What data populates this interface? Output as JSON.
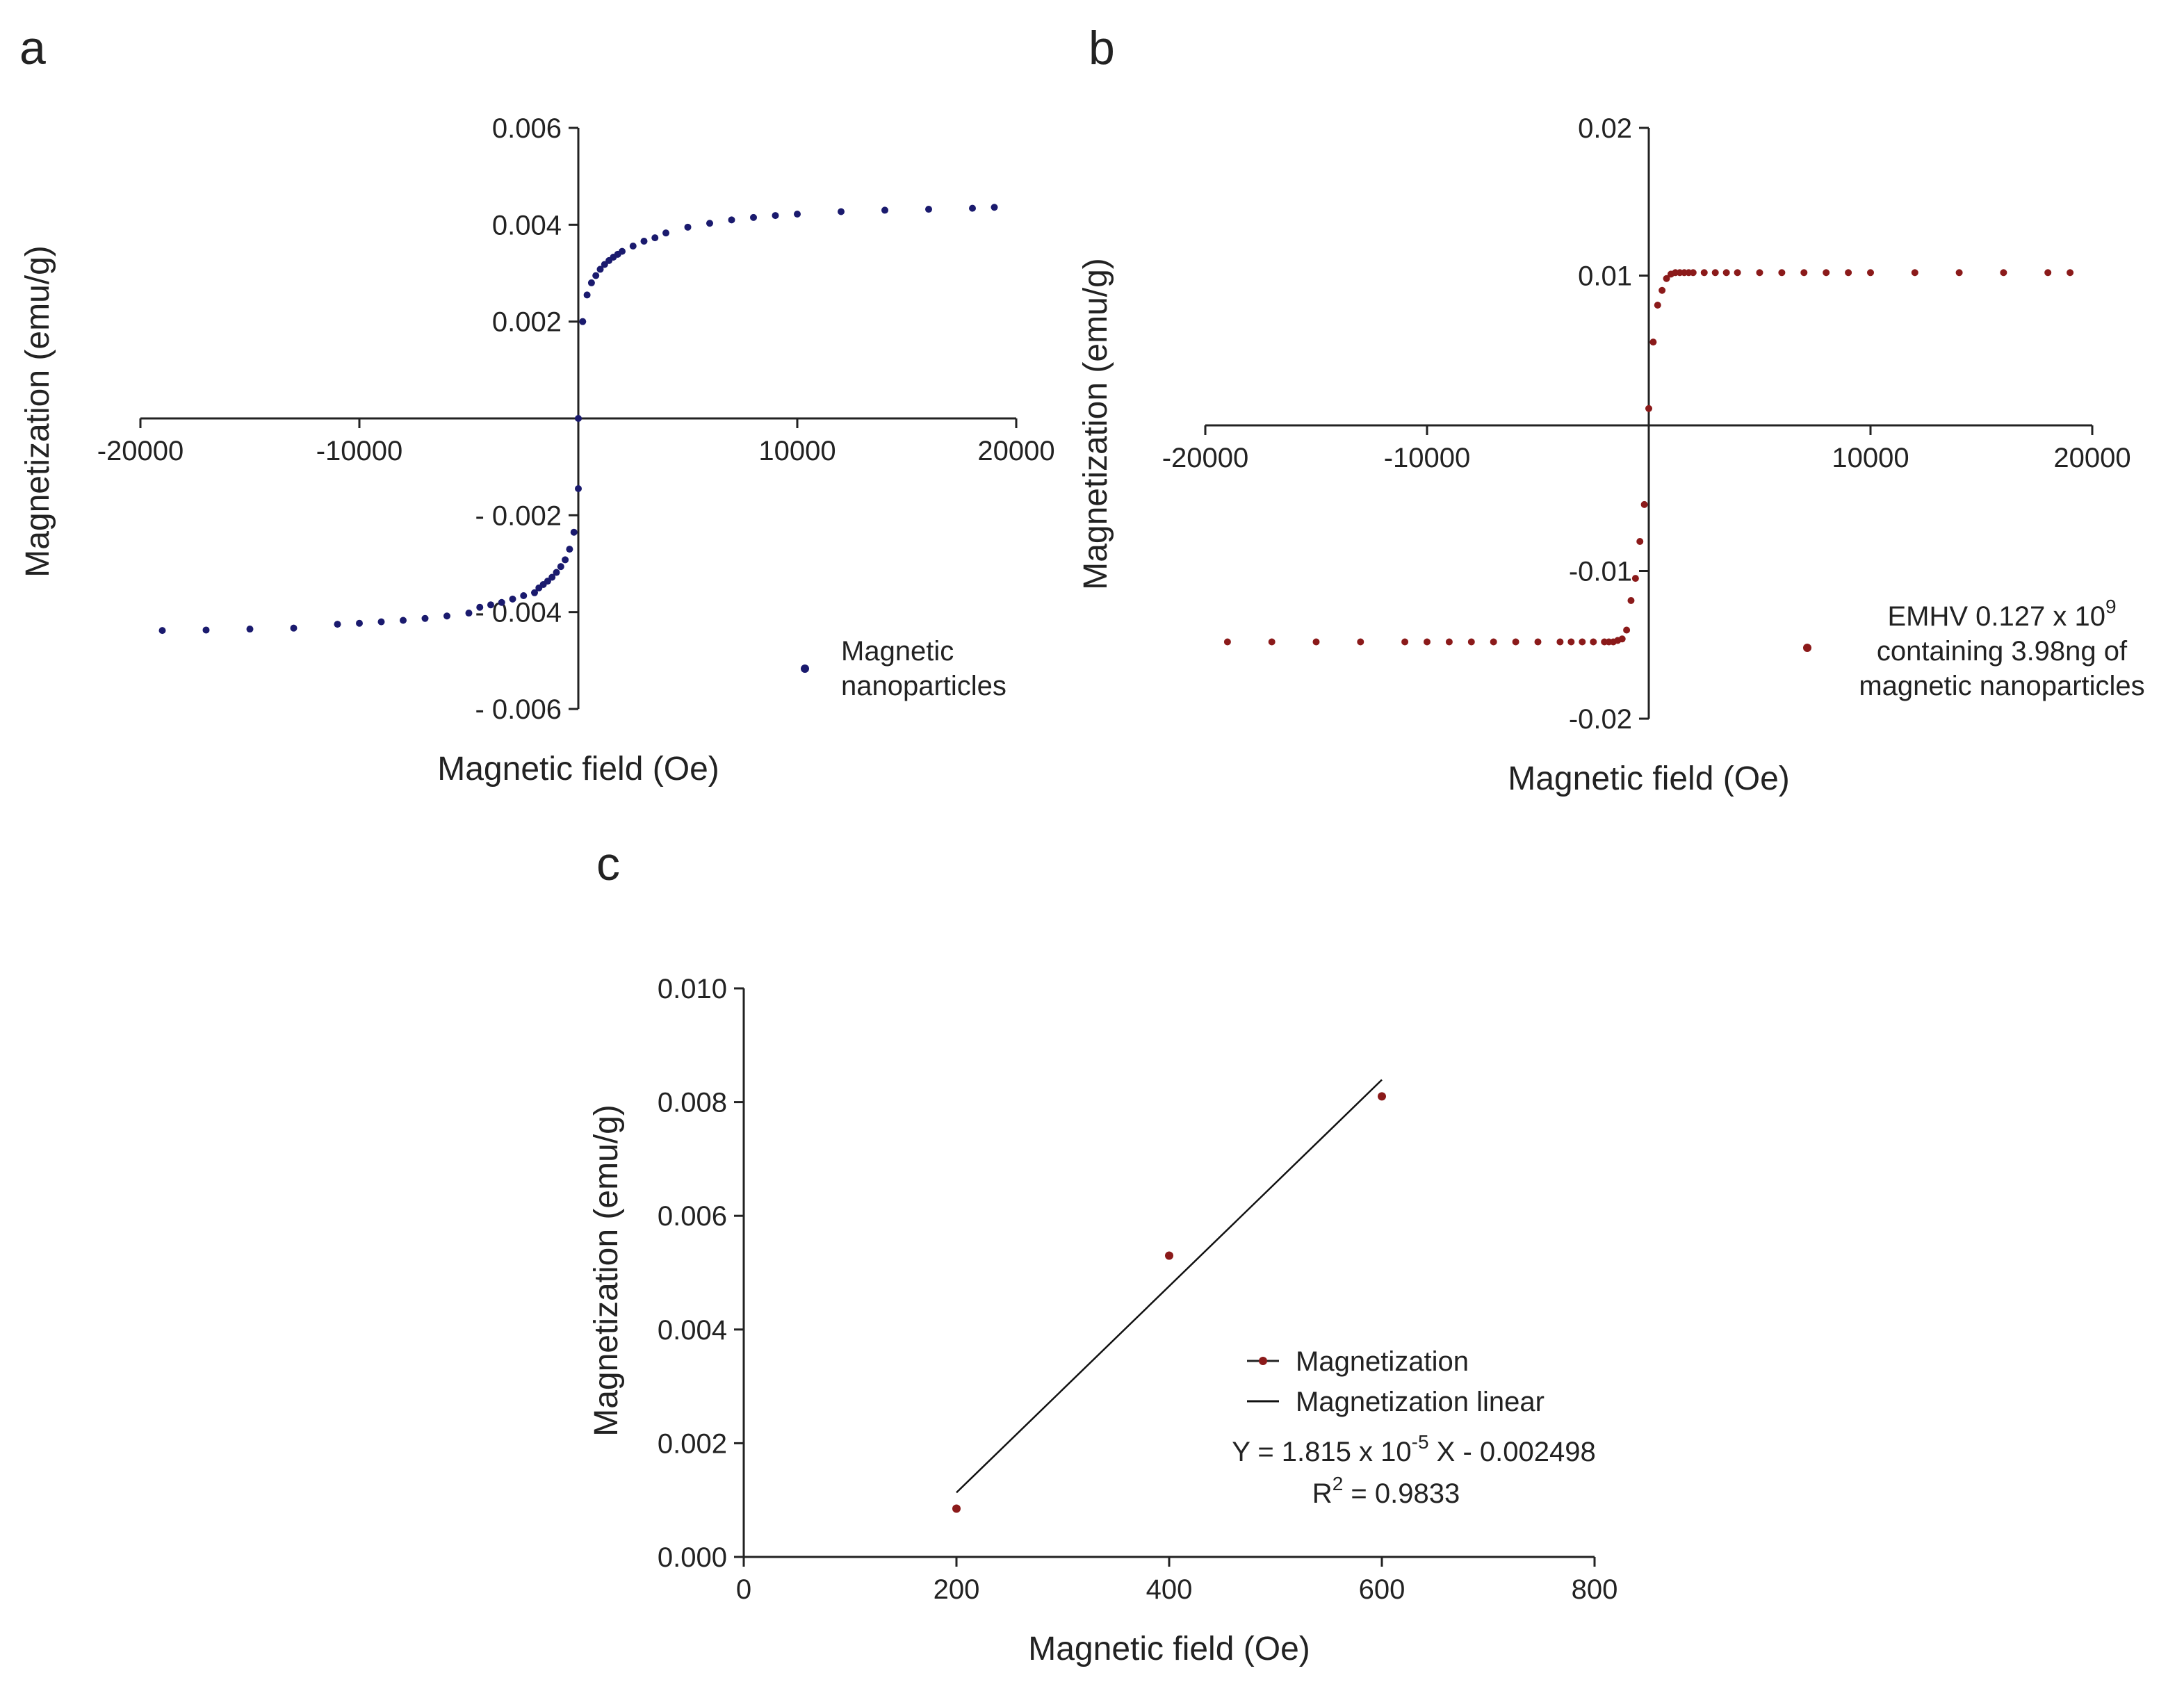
{
  "chart_data": [
    {
      "panel": "a",
      "type": "scatter",
      "xlabel": "Magnetic field (Oe)",
      "ylabel": "Magnetization (emu/g)",
      "xlim": [
        -20000,
        20000
      ],
      "ylim": [
        -0.006,
        0.006
      ],
      "xticks": [
        -20000,
        -10000,
        10000,
        20000
      ],
      "xtick_labels": [
        "-20000",
        "-10000",
        "10000",
        "20000"
      ],
      "yticks": [
        0.006,
        0.004,
        0.002,
        -0.002,
        -0.004,
        -0.006
      ],
      "ytick_labels": [
        "0.006",
        "0.004",
        "0.002",
        "- 0.002",
        "- 0.004",
        "- 0.006"
      ],
      "grid": false,
      "legend_position": "bottom-right",
      "colors": {
        "marker": "#1a1a6e"
      },
      "series": [
        {
          "name": "Magnetic\nnanoparticles",
          "x": [
            -19000,
            -17000,
            -15000,
            -13000,
            -11000,
            -10000,
            -9000,
            -8000,
            -7000,
            -6000,
            -5000,
            -4500,
            -4000,
            -3500,
            -3000,
            -2500,
            -2000,
            -1800,
            -1600,
            -1400,
            -1200,
            -1000,
            -800,
            -600,
            -400,
            -200,
            0,
            0,
            200,
            400,
            600,
            800,
            1000,
            1200,
            1400,
            1600,
            1800,
            2000,
            2500,
            3000,
            3500,
            4000,
            5000,
            6000,
            7000,
            8000,
            9000,
            10000,
            12000,
            14000,
            16000,
            18000,
            19000
          ],
          "y": [
            -0.00438,
            -0.00437,
            -0.00435,
            -0.00433,
            -0.00425,
            -0.00423,
            -0.0042,
            -0.00417,
            -0.00413,
            -0.00408,
            -0.00402,
            -0.0039,
            -0.00385,
            -0.0038,
            -0.00373,
            -0.00366,
            -0.0036,
            -0.0035,
            -0.00343,
            -0.00336,
            -0.00328,
            -0.00318,
            -0.00306,
            -0.00292,
            -0.0027,
            -0.00235,
            -0.00145,
            0.0,
            0.002,
            0.00255,
            0.0028,
            0.00295,
            0.00308,
            0.00318,
            0.00326,
            0.00333,
            0.00339,
            0.00345,
            0.00356,
            0.00366,
            0.00373,
            0.00383,
            0.00395,
            0.00403,
            0.0041,
            0.00415,
            0.00419,
            0.00422,
            0.00427,
            0.0043,
            0.00432,
            0.00434,
            0.00436
          ]
        }
      ]
    },
    {
      "panel": "b",
      "type": "scatter",
      "xlabel": "Magnetic field (Oe)",
      "ylabel": "Magnetization (emu/g)",
      "xlim": [
        -20000,
        20000
      ],
      "ylim": [
        -0.02,
        0.02
      ],
      "xticks": [
        -20000,
        -10000,
        10000,
        20000
      ],
      "xtick_labels": [
        "-20000",
        "-10000",
        "10000",
        "20000"
      ],
      "yticks": [
        0.02,
        0.01,
        -0.01,
        -0.02
      ],
      "ytick_labels": [
        "0.02",
        "0.01",
        "-0.01",
        "-0.02"
      ],
      "grid": false,
      "legend_position": "bottom-right",
      "colors": {
        "marker": "#8b1a1a"
      },
      "legend_lines": [
        "EMHV 0.127 x 10",
        "containing 3.98ng of",
        "magnetic nanoparticles"
      ],
      "legend_superscript": "9",
      "series": [
        {
          "name": "EMHV 0.127 x 10^9 containing 3.98ng of magnetic nanoparticles",
          "x": [
            -19000,
            -17000,
            -15000,
            -13000,
            -11000,
            -10000,
            -9000,
            -8000,
            -7000,
            -6000,
            -5000,
            -4000,
            -3500,
            -3000,
            -2500,
            -2000,
            -1800,
            -1600,
            -1400,
            -1200,
            -1000,
            -800,
            -600,
            -400,
            -200,
            0,
            200,
            400,
            600,
            800,
            1000,
            1200,
            1400,
            1600,
            1800,
            2000,
            2500,
            3000,
            3500,
            4000,
            5000,
            6000,
            7000,
            8000,
            9000,
            10000,
            12000,
            14000,
            16000,
            18000,
            19000
          ],
          "y": [
            -0.0148,
            -0.0148,
            -0.0148,
            -0.0148,
            -0.0148,
            -0.0148,
            -0.0148,
            -0.0148,
            -0.0148,
            -0.0148,
            -0.0148,
            -0.0148,
            -0.0148,
            -0.0148,
            -0.0148,
            -0.0148,
            -0.0148,
            -0.0148,
            -0.0147,
            -0.0146,
            -0.014,
            -0.012,
            -0.0105,
            -0.008,
            -0.0055,
            0.001,
            0.0055,
            0.008,
            0.009,
            0.0098,
            0.0101,
            0.0102,
            0.0102,
            0.0102,
            0.0102,
            0.0102,
            0.0102,
            0.0102,
            0.0102,
            0.0102,
            0.0102,
            0.0102,
            0.0102,
            0.0102,
            0.0102,
            0.0102,
            0.0102,
            0.0102,
            0.0102,
            0.0102,
            0.0102
          ]
        }
      ]
    },
    {
      "panel": "c",
      "type": "scatter",
      "xlabel": "Magnetic field (Oe)",
      "ylabel": "Magnetization (emu/g)",
      "xlim": [
        0,
        800
      ],
      "ylim": [
        0,
        0.01
      ],
      "xticks": [
        0,
        200,
        400,
        600,
        800
      ],
      "xtick_labels": [
        "0",
        "200",
        "400",
        "600",
        "800"
      ],
      "yticks": [
        0,
        0.002,
        0.004,
        0.006,
        0.008,
        0.01
      ],
      "ytick_labels": [
        "0.000",
        "0.002",
        "0.004",
        "0.006",
        "0.008",
        "0.010"
      ],
      "grid": false,
      "legend_position": "bottom-right",
      "colors": {
        "marker": "#8b1a1a",
        "line": "#111111"
      },
      "series": [
        {
          "name": "Magnetization",
          "x": [
            200,
            400,
            600
          ],
          "y": [
            0.00085,
            0.0053,
            0.0081
          ]
        },
        {
          "name": "Magnetization linear",
          "type": "line",
          "x": [
            200,
            600
          ],
          "y": [
            0.001132,
            0.008392
          ]
        }
      ],
      "equation_main": "Y = 1.815 x 10",
      "equation_exp": "-5",
      "equation_tail": " X - 0.002498",
      "r2_prefix": "R",
      "r2_exp": "2",
      "r2_tail": " = 0.9833"
    }
  ]
}
